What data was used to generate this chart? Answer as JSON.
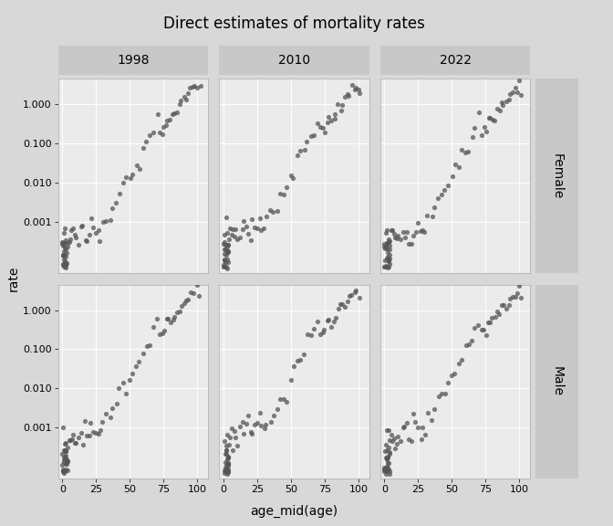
{
  "title": "Direct estimates of mortality rates",
  "years": [
    "1998",
    "2010",
    "2022"
  ],
  "sexes": [
    "Female",
    "Male"
  ],
  "xlabel": "age_mid(age)",
  "ylabel": "rate",
  "panel_bg": "#ebebeb",
  "header_bg": "#c8c8c8",
  "outer_bg": "#d8d8d8",
  "row_strip_bg": "#c8c8c8",
  "dot_color": "#555555",
  "dot_alpha": 0.75,
  "dot_size": 14,
  "ylim_log_min": -4.3,
  "ylim_log_max": 0.65,
  "xlim_min": -3,
  "xlim_max": 108,
  "xticks": [
    0,
    25,
    50,
    75,
    100
  ],
  "ytick_vals": [
    0.001,
    0.01,
    0.1,
    1.0
  ],
  "ytick_labels": [
    "0.001",
    "0.010",
    "0.100",
    "1.000"
  ],
  "grid_color": "#ffffff",
  "grid_lw": 0.7,
  "title_fontsize": 12,
  "strip_fontsize": 10,
  "tick_fontsize": 8,
  "axis_label_fontsize": 10
}
